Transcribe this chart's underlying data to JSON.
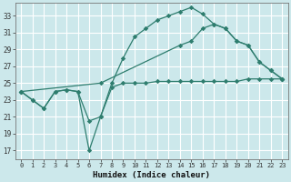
{
  "xlabel": "Humidex (Indice chaleur)",
  "bg_color": "#cce8eb",
  "grid_color": "#ffffff",
  "line_color": "#2e7d6e",
  "xlim": [
    -0.5,
    23.5
  ],
  "ylim": [
    16.0,
    34.5
  ],
  "yticks": [
    17,
    19,
    21,
    23,
    25,
    27,
    29,
    31,
    33
  ],
  "xticks": [
    0,
    1,
    2,
    3,
    4,
    5,
    6,
    7,
    8,
    9,
    10,
    11,
    12,
    13,
    14,
    15,
    16,
    17,
    18,
    19,
    20,
    21,
    22,
    23
  ],
  "line1_x": [
    0,
    1,
    2,
    3,
    4,
    5,
    6,
    7,
    8,
    9,
    10,
    11,
    12,
    13,
    14,
    15,
    16,
    17,
    18,
    19,
    20,
    21,
    22,
    23
  ],
  "line1_y": [
    24.0,
    23.0,
    22.0,
    24.0,
    24.2,
    24.0,
    20.5,
    21.0,
    24.5,
    25.0,
    25.0,
    25.0,
    25.2,
    25.2,
    25.2,
    25.2,
    25.2,
    25.2,
    25.2,
    25.2,
    25.5,
    25.5,
    25.5,
    25.5
  ],
  "line2_x": [
    0,
    1,
    2,
    3,
    4,
    5,
    6,
    7,
    8,
    9,
    10,
    11,
    12,
    13,
    14,
    15,
    16,
    17,
    18,
    19,
    20,
    21,
    22,
    23
  ],
  "line2_y": [
    24.0,
    23.0,
    22.0,
    24.0,
    24.2,
    24.0,
    17.0,
    21.0,
    25.0,
    28.0,
    30.5,
    31.5,
    32.5,
    33.0,
    33.5,
    34.0,
    33.2,
    32.0,
    31.5,
    30.0,
    29.5,
    27.5,
    26.5,
    25.5
  ],
  "line3_x": [
    0,
    7,
    14,
    15,
    16,
    17,
    18,
    19,
    20,
    21,
    22,
    23
  ],
  "line3_y": [
    24.0,
    25.0,
    29.5,
    30.0,
    31.5,
    32.0,
    31.5,
    30.0,
    29.5,
    27.5,
    26.5,
    25.5
  ]
}
